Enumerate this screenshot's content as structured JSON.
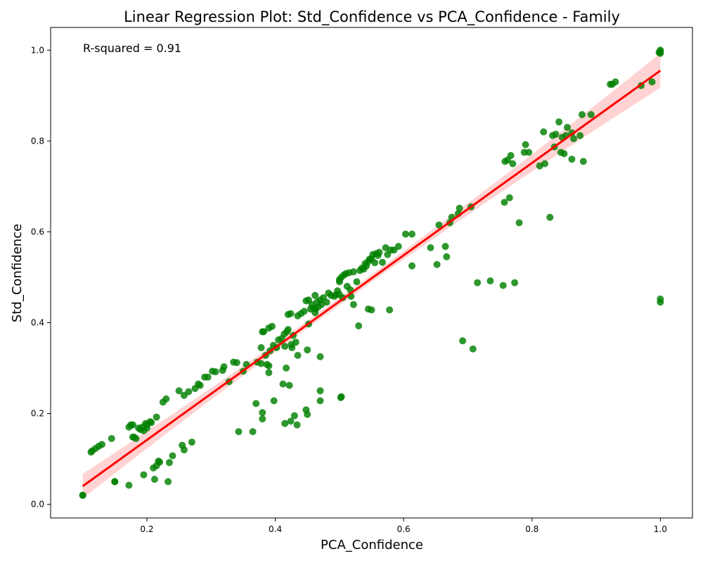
{
  "chart_data": {
    "type": "scatter",
    "title": "Linear Regression Plot: Std_Confidence vs PCA_Confidence - Family",
    "xlabel": "PCA_Confidence",
    "ylabel": "Std_Confidence",
    "annotation": "R-squared = 0.91",
    "xlim": [
      0.05,
      1.05
    ],
    "ylim": [
      -0.03,
      1.05
    ],
    "xticks": [
      0.2,
      0.4,
      0.6,
      0.8,
      1.0
    ],
    "xtick_labels": [
      "0.2",
      "0.4",
      "0.6",
      "0.8",
      "1.0"
    ],
    "yticks": [
      0.0,
      0.2,
      0.4,
      0.6,
      0.8,
      1.0
    ],
    "ytick_labels": [
      "0.0",
      "0.2",
      "0.4",
      "0.6",
      "0.8",
      "1.0"
    ],
    "grid": false,
    "colors": {
      "points": "#008000",
      "regression_line": "#ff0000",
      "confidence_band": "#ffb6b6"
    },
    "regression_line": {
      "x": [
        0.1,
        1.0
      ],
      "y": [
        0.04,
        0.955
      ]
    },
    "points": [
      [
        0.1,
        0.02
      ],
      [
        0.1,
        0.02
      ],
      [
        0.113,
        0.115
      ],
      [
        0.115,
        0.118
      ],
      [
        0.12,
        0.123
      ],
      [
        0.125,
        0.128
      ],
      [
        0.13,
        0.132
      ],
      [
        0.145,
        0.145
      ],
      [
        0.15,
        0.05
      ],
      [
        0.15,
        0.05
      ],
      [
        0.172,
        0.17
      ],
      [
        0.172,
        0.042
      ],
      [
        0.175,
        0.175
      ],
      [
        0.178,
        0.175
      ],
      [
        0.178,
        0.148
      ],
      [
        0.18,
        0.148
      ],
      [
        0.183,
        0.145
      ],
      [
        0.187,
        0.168
      ],
      [
        0.19,
        0.165
      ],
      [
        0.193,
        0.17
      ],
      [
        0.195,
        0.065
      ],
      [
        0.195,
        0.162
      ],
      [
        0.198,
        0.178
      ],
      [
        0.2,
        0.168
      ],
      [
        0.2,
        0.175
      ],
      [
        0.205,
        0.182
      ],
      [
        0.207,
        0.18
      ],
      [
        0.21,
        0.08
      ],
      [
        0.212,
        0.055
      ],
      [
        0.215,
        0.085
      ],
      [
        0.215,
        0.192
      ],
      [
        0.218,
        0.095
      ],
      [
        0.22,
        0.093
      ],
      [
        0.225,
        0.225
      ],
      [
        0.23,
        0.232
      ],
      [
        0.233,
        0.05
      ],
      [
        0.235,
        0.092
      ],
      [
        0.24,
        0.107
      ],
      [
        0.25,
        0.25
      ],
      [
        0.255,
        0.13
      ],
      [
        0.258,
        0.12
      ],
      [
        0.258,
        0.24
      ],
      [
        0.265,
        0.248
      ],
      [
        0.27,
        0.137
      ],
      [
        0.275,
        0.255
      ],
      [
        0.28,
        0.265
      ],
      [
        0.283,
        0.262
      ],
      [
        0.29,
        0.28
      ],
      [
        0.295,
        0.28
      ],
      [
        0.302,
        0.293
      ],
      [
        0.307,
        0.292
      ],
      [
        0.318,
        0.295
      ],
      [
        0.32,
        0.303
      ],
      [
        0.328,
        0.27
      ],
      [
        0.335,
        0.313
      ],
      [
        0.34,
        0.312
      ],
      [
        0.343,
        0.16
      ],
      [
        0.35,
        0.293
      ],
      [
        0.355,
        0.308
      ],
      [
        0.365,
        0.16
      ],
      [
        0.37,
        0.222
      ],
      [
        0.372,
        0.313
      ],
      [
        0.378,
        0.345
      ],
      [
        0.378,
        0.31
      ],
      [
        0.38,
        0.202
      ],
      [
        0.38,
        0.188
      ],
      [
        0.38,
        0.38
      ],
      [
        0.382,
        0.38
      ],
      [
        0.385,
        0.328
      ],
      [
        0.387,
        0.308
      ],
      [
        0.39,
        0.29
      ],
      [
        0.39,
        0.305
      ],
      [
        0.39,
        0.388
      ],
      [
        0.392,
        0.338
      ],
      [
        0.395,
        0.392
      ],
      [
        0.397,
        0.35
      ],
      [
        0.398,
        0.228
      ],
      [
        0.402,
        0.345
      ],
      [
        0.405,
        0.362
      ],
      [
        0.41,
        0.365
      ],
      [
        0.412,
        0.265
      ],
      [
        0.414,
        0.375
      ],
      [
        0.415,
        0.178
      ],
      [
        0.415,
        0.348
      ],
      [
        0.417,
        0.3
      ],
      [
        0.418,
        0.38
      ],
      [
        0.42,
        0.385
      ],
      [
        0.42,
        0.418
      ],
      [
        0.422,
        0.262
      ],
      [
        0.424,
        0.42
      ],
      [
        0.424,
        0.183
      ],
      [
        0.425,
        0.352
      ],
      [
        0.426,
        0.345
      ],
      [
        0.428,
        0.372
      ],
      [
        0.43,
        0.195
      ],
      [
        0.432,
        0.357
      ],
      [
        0.434,
        0.175
      ],
      [
        0.435,
        0.328
      ],
      [
        0.435,
        0.415
      ],
      [
        0.44,
        0.42
      ],
      [
        0.445,
        0.425
      ],
      [
        0.448,
        0.208
      ],
      [
        0.448,
        0.448
      ],
      [
        0.45,
        0.34
      ],
      [
        0.45,
        0.198
      ],
      [
        0.452,
        0.397
      ],
      [
        0.452,
        0.45
      ],
      [
        0.455,
        0.43
      ],
      [
        0.457,
        0.44
      ],
      [
        0.46,
        0.432
      ],
      [
        0.462,
        0.422
      ],
      [
        0.462,
        0.46
      ],
      [
        0.463,
        0.43
      ],
      [
        0.465,
        0.445
      ],
      [
        0.467,
        0.435
      ],
      [
        0.47,
        0.25
      ],
      [
        0.47,
        0.228
      ],
      [
        0.47,
        0.325
      ],
      [
        0.47,
        0.45
      ],
      [
        0.472,
        0.44
      ],
      [
        0.475,
        0.455
      ],
      [
        0.48,
        0.445
      ],
      [
        0.483,
        0.465
      ],
      [
        0.487,
        0.46
      ],
      [
        0.492,
        0.458
      ],
      [
        0.495,
        0.462
      ],
      [
        0.497,
        0.47
      ],
      [
        0.5,
        0.462
      ],
      [
        0.5,
        0.49
      ],
      [
        0.5,
        0.495
      ],
      [
        0.502,
        0.235
      ],
      [
        0.503,
        0.237
      ],
      [
        0.503,
        0.5
      ],
      [
        0.505,
        0.455
      ],
      [
        0.507,
        0.505
      ],
      [
        0.51,
        0.508
      ],
      [
        0.512,
        0.48
      ],
      [
        0.515,
        0.51
      ],
      [
        0.517,
        0.472
      ],
      [
        0.518,
        0.458
      ],
      [
        0.522,
        0.44
      ],
      [
        0.522,
        0.512
      ],
      [
        0.527,
        0.49
      ],
      [
        0.53,
        0.393
      ],
      [
        0.532,
        0.515
      ],
      [
        0.535,
        0.52
      ],
      [
        0.538,
        0.518
      ],
      [
        0.54,
        0.53
      ],
      [
        0.542,
        0.525
      ],
      [
        0.545,
        0.43
      ],
      [
        0.545,
        0.535
      ],
      [
        0.547,
        0.54
      ],
      [
        0.55,
        0.428
      ],
      [
        0.55,
        0.54
      ],
      [
        0.552,
        0.55
      ],
      [
        0.555,
        0.532
      ],
      [
        0.557,
        0.552
      ],
      [
        0.56,
        0.548
      ],
      [
        0.562,
        0.555
      ],
      [
        0.567,
        0.533
      ],
      [
        0.572,
        0.565
      ],
      [
        0.575,
        0.55
      ],
      [
        0.578,
        0.428
      ],
      [
        0.58,
        0.56
      ],
      [
        0.585,
        0.56
      ],
      [
        0.592,
        0.568
      ],
      [
        0.603,
        0.595
      ],
      [
        0.613,
        0.595
      ],
      [
        0.613,
        0.525
      ],
      [
        0.642,
        0.565
      ],
      [
        0.652,
        0.528
      ],
      [
        0.655,
        0.615
      ],
      [
        0.665,
        0.568
      ],
      [
        0.667,
        0.545
      ],
      [
        0.672,
        0.62
      ],
      [
        0.675,
        0.632
      ],
      [
        0.685,
        0.64
      ],
      [
        0.687,
        0.652
      ],
      [
        0.692,
        0.36
      ],
      [
        0.705,
        0.655
      ],
      [
        0.708,
        0.342
      ],
      [
        0.715,
        0.488
      ],
      [
        0.735,
        0.492
      ],
      [
        0.755,
        0.482
      ],
      [
        0.757,
        0.665
      ],
      [
        0.758,
        0.755
      ],
      [
        0.762,
        0.758
      ],
      [
        0.765,
        0.675
      ],
      [
        0.767,
        0.768
      ],
      [
        0.77,
        0.75
      ],
      [
        0.773,
        0.488
      ],
      [
        0.78,
        0.62
      ],
      [
        0.788,
        0.775
      ],
      [
        0.79,
        0.792
      ],
      [
        0.795,
        0.775
      ],
      [
        0.812,
        0.745
      ],
      [
        0.818,
        0.82
      ],
      [
        0.82,
        0.75
      ],
      [
        0.828,
        0.632
      ],
      [
        0.832,
        0.812
      ],
      [
        0.835,
        0.787
      ],
      [
        0.837,
        0.815
      ],
      [
        0.842,
        0.842
      ],
      [
        0.845,
        0.775
      ],
      [
        0.847,
        0.808
      ],
      [
        0.85,
        0.772
      ],
      [
        0.853,
        0.812
      ],
      [
        0.855,
        0.83
      ],
      [
        0.862,
        0.76
      ],
      [
        0.862,
        0.818
      ],
      [
        0.865,
        0.805
      ],
      [
        0.875,
        0.812
      ],
      [
        0.878,
        0.858
      ],
      [
        0.88,
        0.755
      ],
      [
        0.892,
        0.858
      ],
      [
        0.922,
        0.925
      ],
      [
        0.925,
        0.925
      ],
      [
        0.93,
        0.93
      ],
      [
        0.97,
        0.922
      ],
      [
        0.987,
        0.93
      ],
      [
        0.998,
        0.995
      ],
      [
        1.0,
        0.997
      ],
      [
        1.0,
        1.0
      ],
      [
        1.0,
        0.993
      ],
      [
        1.0,
        0.445
      ],
      [
        1.0,
        0.452
      ]
    ]
  }
}
